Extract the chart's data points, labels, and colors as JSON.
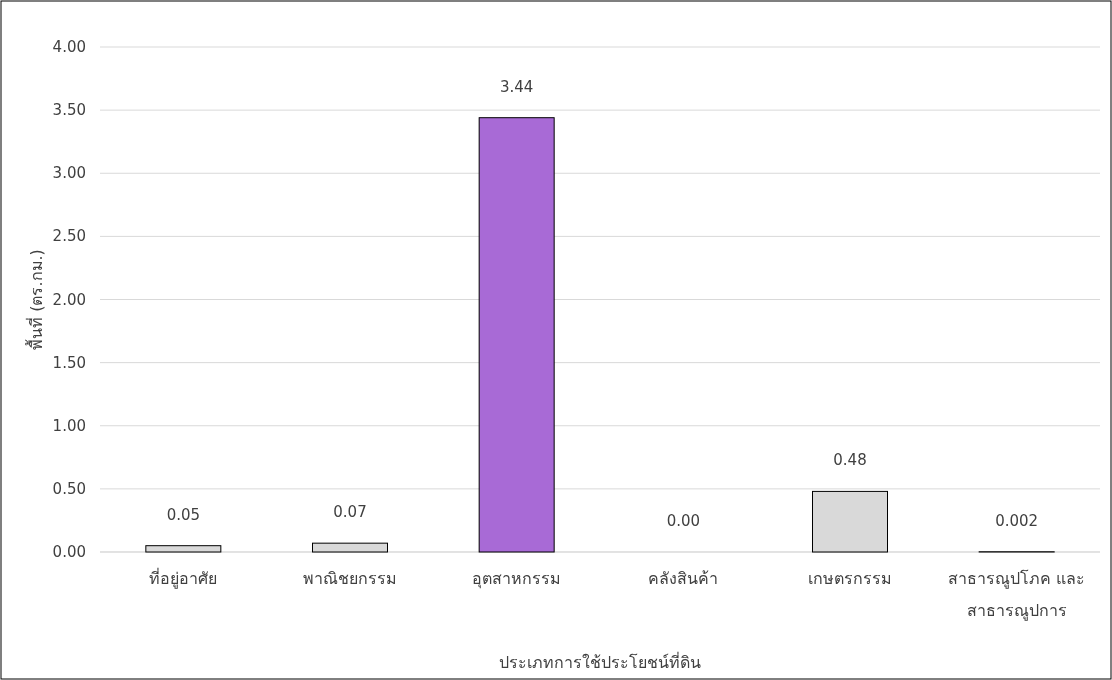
{
  "chart_data": {
    "type": "bar",
    "xlabel": "ประเภทการใช้ประโยชน์ที่ดิน",
    "ylabel": "พื้นที่ (ตร.กม.)",
    "categories": [
      "ที่อยู่อาศัย",
      "พาณิชยกรรม",
      "อุตสาหกรรม",
      "คลังสินค้า",
      "เกษตรกรรม",
      "สาธารณูปโภค และ สาธารณูปการ"
    ],
    "values": [
      0.05,
      0.07,
      3.44,
      0,
      0.48,
      0.002
    ],
    "colors": [
      "#d9d9d9",
      "#d9d9d9",
      "#a86ad6",
      "#d9d9d9",
      "#d9d9d9",
      "#d9d9d9"
    ],
    "value_labels": [
      "0.05",
      "0.07",
      "3.44",
      "0.00",
      "0.48",
      "0.002"
    ],
    "ylim": [
      0,
      4
    ],
    "yticks": [
      {
        "value": 0,
        "label": "0.00"
      },
      {
        "value": 0.5,
        "label": "0.50"
      },
      {
        "value": 1,
        "label": "1.00"
      },
      {
        "value": 1.5,
        "label": "1.50"
      },
      {
        "value": 2,
        "label": "2.00"
      },
      {
        "value": 2.5,
        "label": "2.50"
      },
      {
        "value": 3,
        "label": "3.00"
      },
      {
        "value": 3.5,
        "label": "3.50"
      },
      {
        "value": 4,
        "label": "4.00"
      }
    ],
    "grid": "y"
  }
}
